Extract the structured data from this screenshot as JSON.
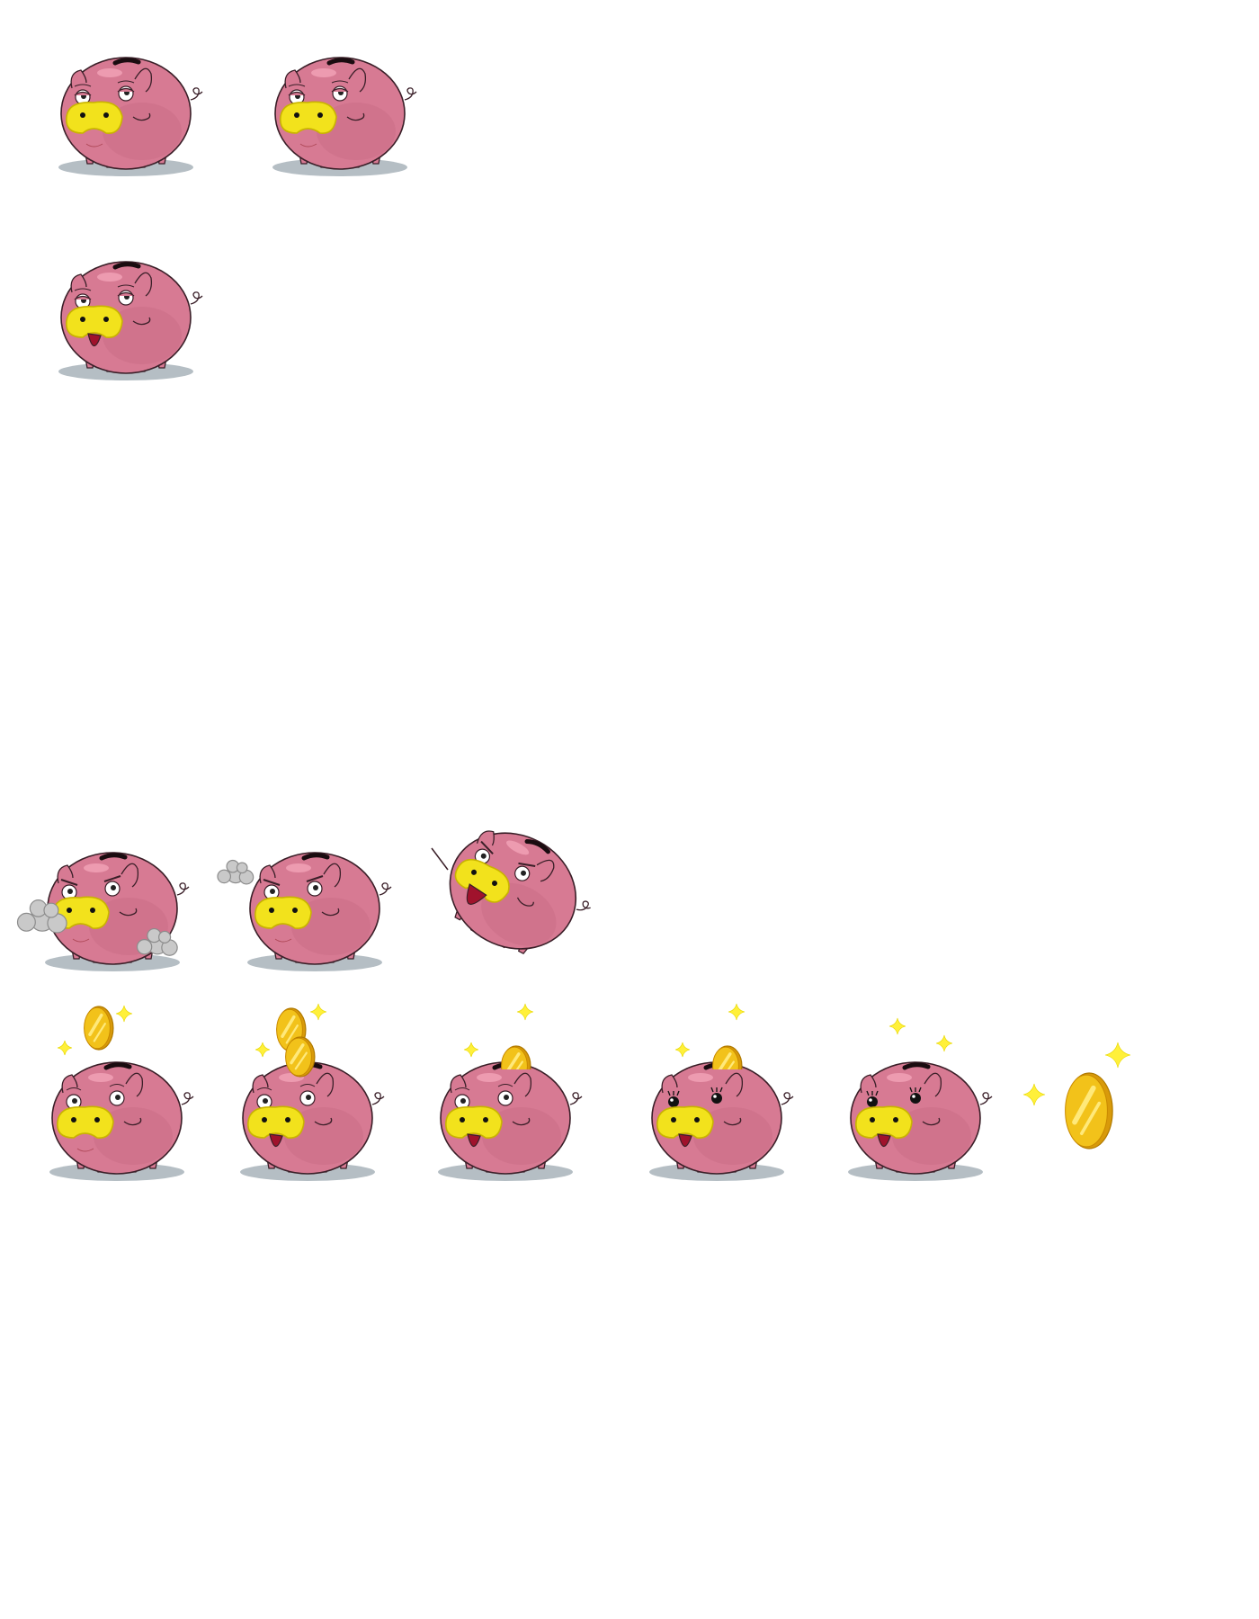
{
  "palette": {
    "body": "#d77a93",
    "body_shade": "#c46680",
    "highlight": "#ef9fb4",
    "outline": "#3a1f28",
    "snout": "#f2e21c",
    "snout_dark": "#c9b400",
    "mouth": "#a0122c",
    "shadow": "#b5bec4",
    "smoke": "#c9c9c9",
    "smoke_edge": "#8c8c8c",
    "coin": "#f2c21a",
    "coin_light": "#ffe97a",
    "coin_edge": "#d89a0a",
    "sparkle": "#fff03a"
  },
  "sheet": {
    "rows": [
      {
        "frames": [
          {
            "id": "idle-1",
            "pose": "idle",
            "eyes": "sleepy",
            "mouth": "closed"
          },
          {
            "id": "idle-2",
            "pose": "idle",
            "eyes": "sleepy",
            "mouth": "closed"
          }
        ]
      },
      {
        "frames": [
          {
            "id": "idle-3",
            "pose": "walk",
            "eyes": "sleepy",
            "mouth": "tongue"
          }
        ]
      },
      {
        "frames": [
          {
            "id": "angry-1",
            "pose": "angry",
            "eyes": "angry",
            "mouth": "closed",
            "effect": "steam-both"
          },
          {
            "id": "angry-2",
            "pose": "angry",
            "eyes": "angry",
            "mouth": "closed",
            "effect": "steam-left"
          },
          {
            "id": "jump-1",
            "pose": "jump",
            "eyes": "angry",
            "mouth": "open-wide"
          }
        ]
      },
      {
        "frames": [
          {
            "id": "coin-1",
            "pose": "idle",
            "eyes": "open",
            "mouth": "closed",
            "effect": "coin-above"
          },
          {
            "id": "coin-2",
            "pose": "idle",
            "eyes": "open",
            "mouth": "open",
            "effect": "coin-entering"
          },
          {
            "id": "coin-3",
            "pose": "idle",
            "eyes": "open",
            "mouth": "open",
            "effect": "coin-half"
          },
          {
            "id": "coin-4",
            "pose": "idle",
            "eyes": "happy",
            "mouth": "open",
            "effect": "coin-half"
          },
          {
            "id": "coin-5",
            "pose": "idle",
            "eyes": "happy",
            "mouth": "open",
            "effect": "sparkle"
          },
          {
            "id": "coin-item",
            "pose": "coin",
            "effect": "sparkle"
          }
        ]
      }
    ]
  },
  "icons": {
    "pig": "piggy-bank-sprite",
    "coin": "gold-coin-icon",
    "sparkle": "sparkle-icon",
    "steam": "steam-puff-icon"
  }
}
